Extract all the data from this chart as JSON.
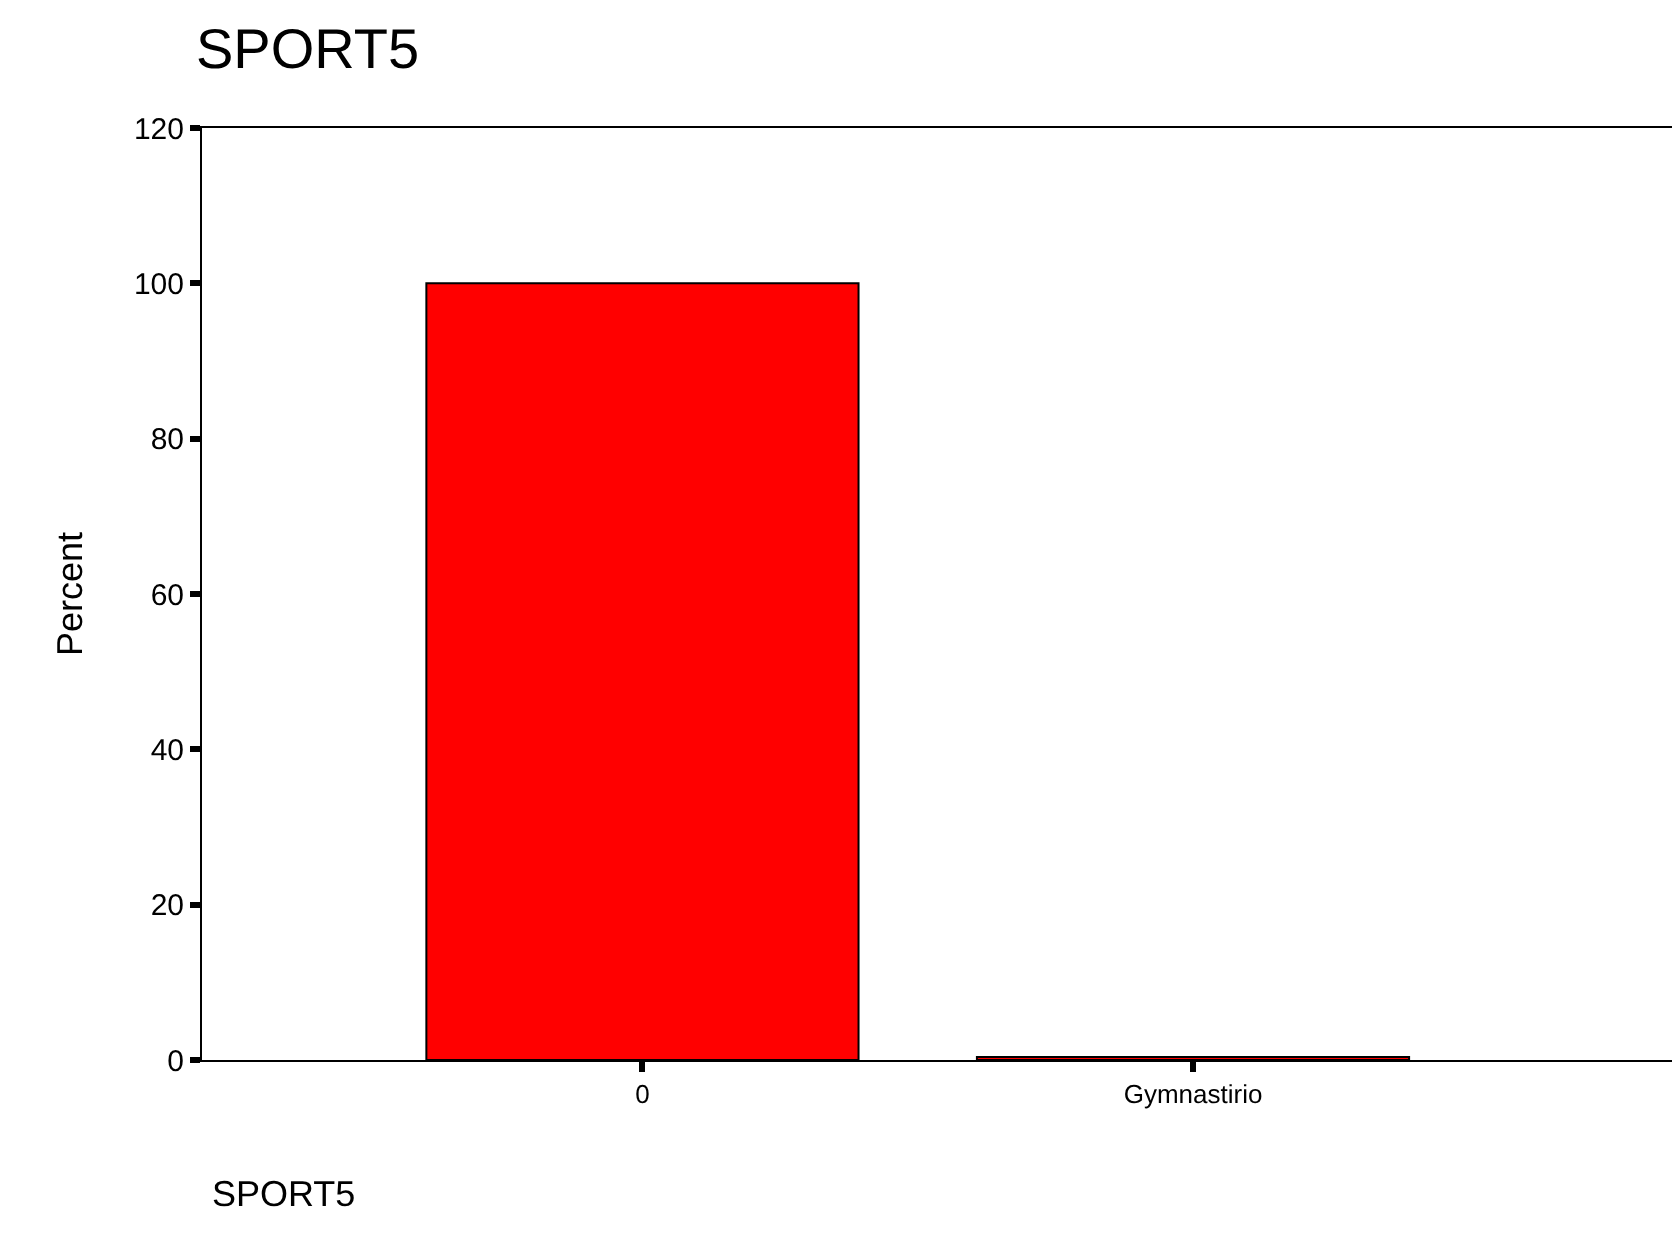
{
  "chart_data": {
    "type": "bar",
    "title": "SPORT5",
    "xlabel": "SPORT5",
    "ylabel": "Percent",
    "categories": [
      "0",
      "Gymnastirio"
    ],
    "values": [
      100,
      0.4
    ],
    "color": "#ff0000",
    "ylim": [
      0,
      120
    ],
    "yticks": [
      0,
      20,
      40,
      60,
      80,
      100,
      120
    ]
  }
}
